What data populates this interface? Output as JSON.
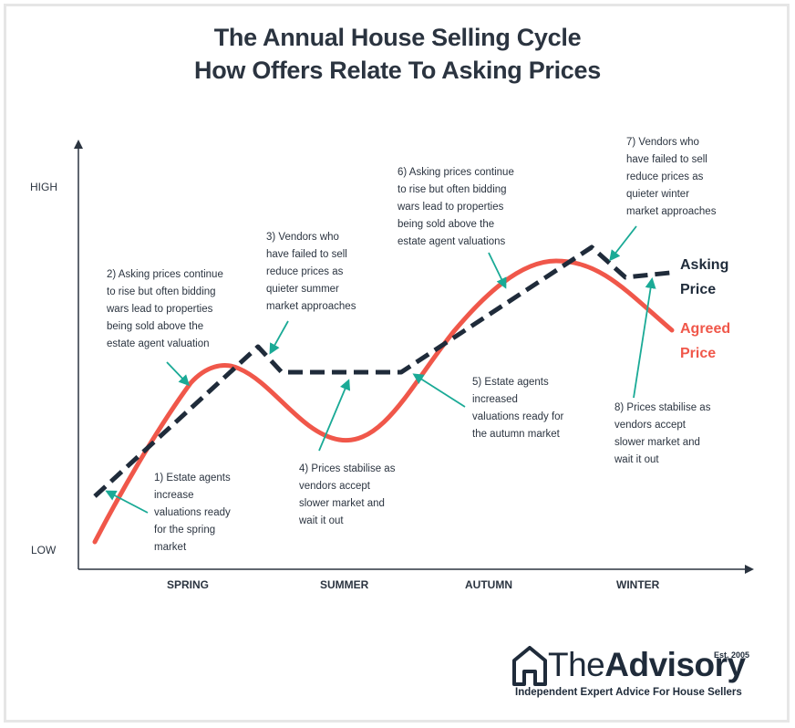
{
  "title_line1": "The Annual House Selling Cycle",
  "title_line2": "How Offers Relate To Asking Prices",
  "axis": {
    "high": "HIGH",
    "low": "LOW"
  },
  "seasons": [
    "SPRING",
    "SUMMER",
    "AUTUMN",
    "WINTER"
  ],
  "notes": [
    {
      "lines": [
        "1) Estate agents",
        "increase",
        "valuations ready",
        "for the spring",
        "market"
      ]
    },
    {
      "lines": [
        "2) Asking prices continue",
        "to rise but often bidding",
        "wars lead to properties",
        "being sold above the",
        "estate agent valuation"
      ]
    },
    {
      "lines": [
        "3) Vendors who",
        "have failed to sell",
        "reduce prices as",
        "quieter summer",
        "market approaches"
      ]
    },
    {
      "lines": [
        "4) Prices stabilise as",
        "vendors accept",
        "slower market and",
        "wait it out"
      ]
    },
    {
      "lines": [
        "5) Estate agents",
        "increased",
        "valuations ready for",
        "the autumn market"
      ]
    },
    {
      "lines": [
        "6) Asking prices continue",
        "to rise but often bidding",
        "wars lead to properties",
        "being sold above the",
        "estate agent valuations"
      ]
    },
    {
      "lines": [
        "7) Vendors who",
        "have failed to sell",
        "reduce prices as",
        "quieter winter",
        "market approaches"
      ]
    },
    {
      "lines": [
        "8) Prices stabilise as",
        "vendors accept",
        "slower market and",
        "wait it out"
      ]
    }
  ],
  "legend": {
    "asking": [
      "Asking",
      "Price"
    ],
    "agreed": [
      "Agreed",
      "Price"
    ]
  },
  "colors": {
    "asking": "#1f2b3a",
    "agreed": "#f0574a",
    "arrow": "#1aaa96",
    "text": "#2b3440"
  },
  "brand": {
    "name_light": "The",
    "name_bold": "Advisory",
    "est": "Est. 2005",
    "tagline": "Independent Expert Advice For House Sellers",
    "icon": "house-icon"
  }
}
